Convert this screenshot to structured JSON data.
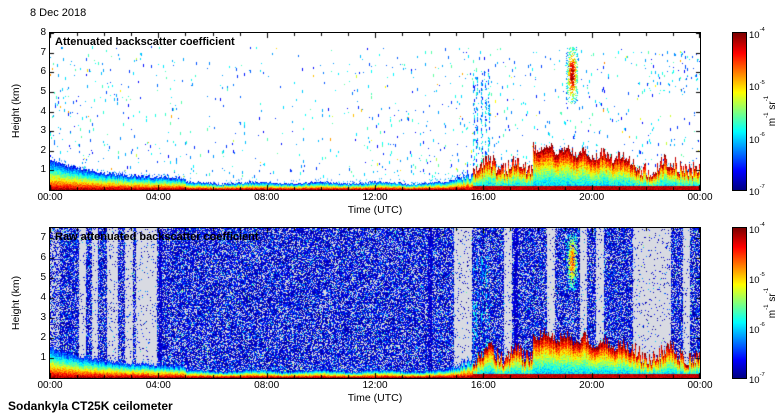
{
  "date_label": "8 Dec 2018",
  "footer_label": "Sodankyla CT25K ceilometer",
  "axis": {
    "xlabel": "Time (UTC)",
    "ylabel": "Height (km)",
    "x_ticks": [
      "00:00",
      "04:00",
      "08:00",
      "12:00",
      "16:00",
      "20:00",
      "00:00"
    ],
    "y_ticks_top": [
      "8",
      "7",
      "6",
      "5",
      "4",
      "3",
      "2",
      "1"
    ],
    "y_ticks_bottom": [
      "7",
      "6",
      "5",
      "4",
      "3",
      "2",
      "1"
    ]
  },
  "panels": [
    {
      "title": "Attenuated backscatter coefficient"
    },
    {
      "title": "Raw attenuated backscatter coefficient"
    }
  ],
  "colorbar": {
    "base": "10",
    "tick_exponents": [
      "-4",
      "-5",
      "-6",
      "-7"
    ],
    "unit_parts": [
      [
        "m",
        "-1"
      ],
      [
        "sr",
        "-1"
      ]
    ]
  },
  "colors": {
    "background": "#ffffff",
    "raw_background": "#d8dae2",
    "axis": "#000000"
  },
  "chart_data": [
    {
      "type": "heatmap",
      "panel": "top",
      "title": "Attenuated backscatter coefficient",
      "xlabel": "Time (UTC)",
      "ylabel": "Height (km)",
      "x_ticks": [
        "00:00",
        "04:00",
        "08:00",
        "12:00",
        "16:00",
        "20:00",
        "00:00"
      ],
      "x_range_hours": [
        0,
        24
      ],
      "y_range_km": [
        0,
        8
      ],
      "colormap": "jet",
      "value_scale": "log",
      "value_range": [
        "1e-7",
        "1e-4"
      ],
      "value_units": "m-1 sr-1",
      "boundary_layer_top_km_hourly": [
        1.4,
        1.05,
        0.8,
        0.62,
        0.52,
        0.48,
        0.42,
        0.38,
        0.35,
        0.33,
        0.32,
        0.3,
        0.32,
        0.35,
        0.4,
        0.7,
        1.3,
        1.6,
        1.9,
        1.8,
        1.55,
        1.4,
        1.1,
        1.0,
        0.9
      ],
      "features": [
        "Strong surface-attached backscatter layer (red/orange core) below ~1 km, deepest near 00:00 and shrinking through the morning",
        "Sparse blue/cyan virga and noise speckles between 1 and 7 km throughout the day, densest before 02:00 and after 15:00",
        "Low clouds with strong red bases at 1-2 km from about 16:00 to 24:00, cloud base slowly descending after 18:00",
        "Dense elevated plume near 19:00-19:30 reaching about 7 km with green/yellow/red core near 6 km",
        "Scattered high-level signals near 5.5-7 km after 22:30"
      ]
    },
    {
      "type": "heatmap",
      "panel": "bottom",
      "title": "Raw attenuated backscatter coefficient",
      "xlabel": "Time (UTC)",
      "ylabel": "Height (km)",
      "x_ticks": [
        "00:00",
        "04:00",
        "08:00",
        "12:00",
        "16:00",
        "20:00",
        "00:00"
      ],
      "x_range_hours": [
        0,
        24
      ],
      "y_range_km": [
        0,
        7.5
      ],
      "colormap": "jet",
      "value_scale": "log",
      "value_range": [
        "1e-7",
        "1e-4"
      ],
      "value_units": "m-1 sr-1",
      "features": [
        "Dense dark-blue instrument noise speckle filling the whole height range",
        "Light-gray vertical bands of reduced noise near 01:00-04:00, around 15:00, 17:00, 18:30, 19:40, 20:20, and a wide band 21:30-23:00",
        "Same strong surface layer and low-cloud signals as the processed panel, plus the ~19:00 plume reaching ~7 km",
        "A few darker saturated noise columns near 04:00, 14:00 and 17:10"
      ]
    }
  ]
}
